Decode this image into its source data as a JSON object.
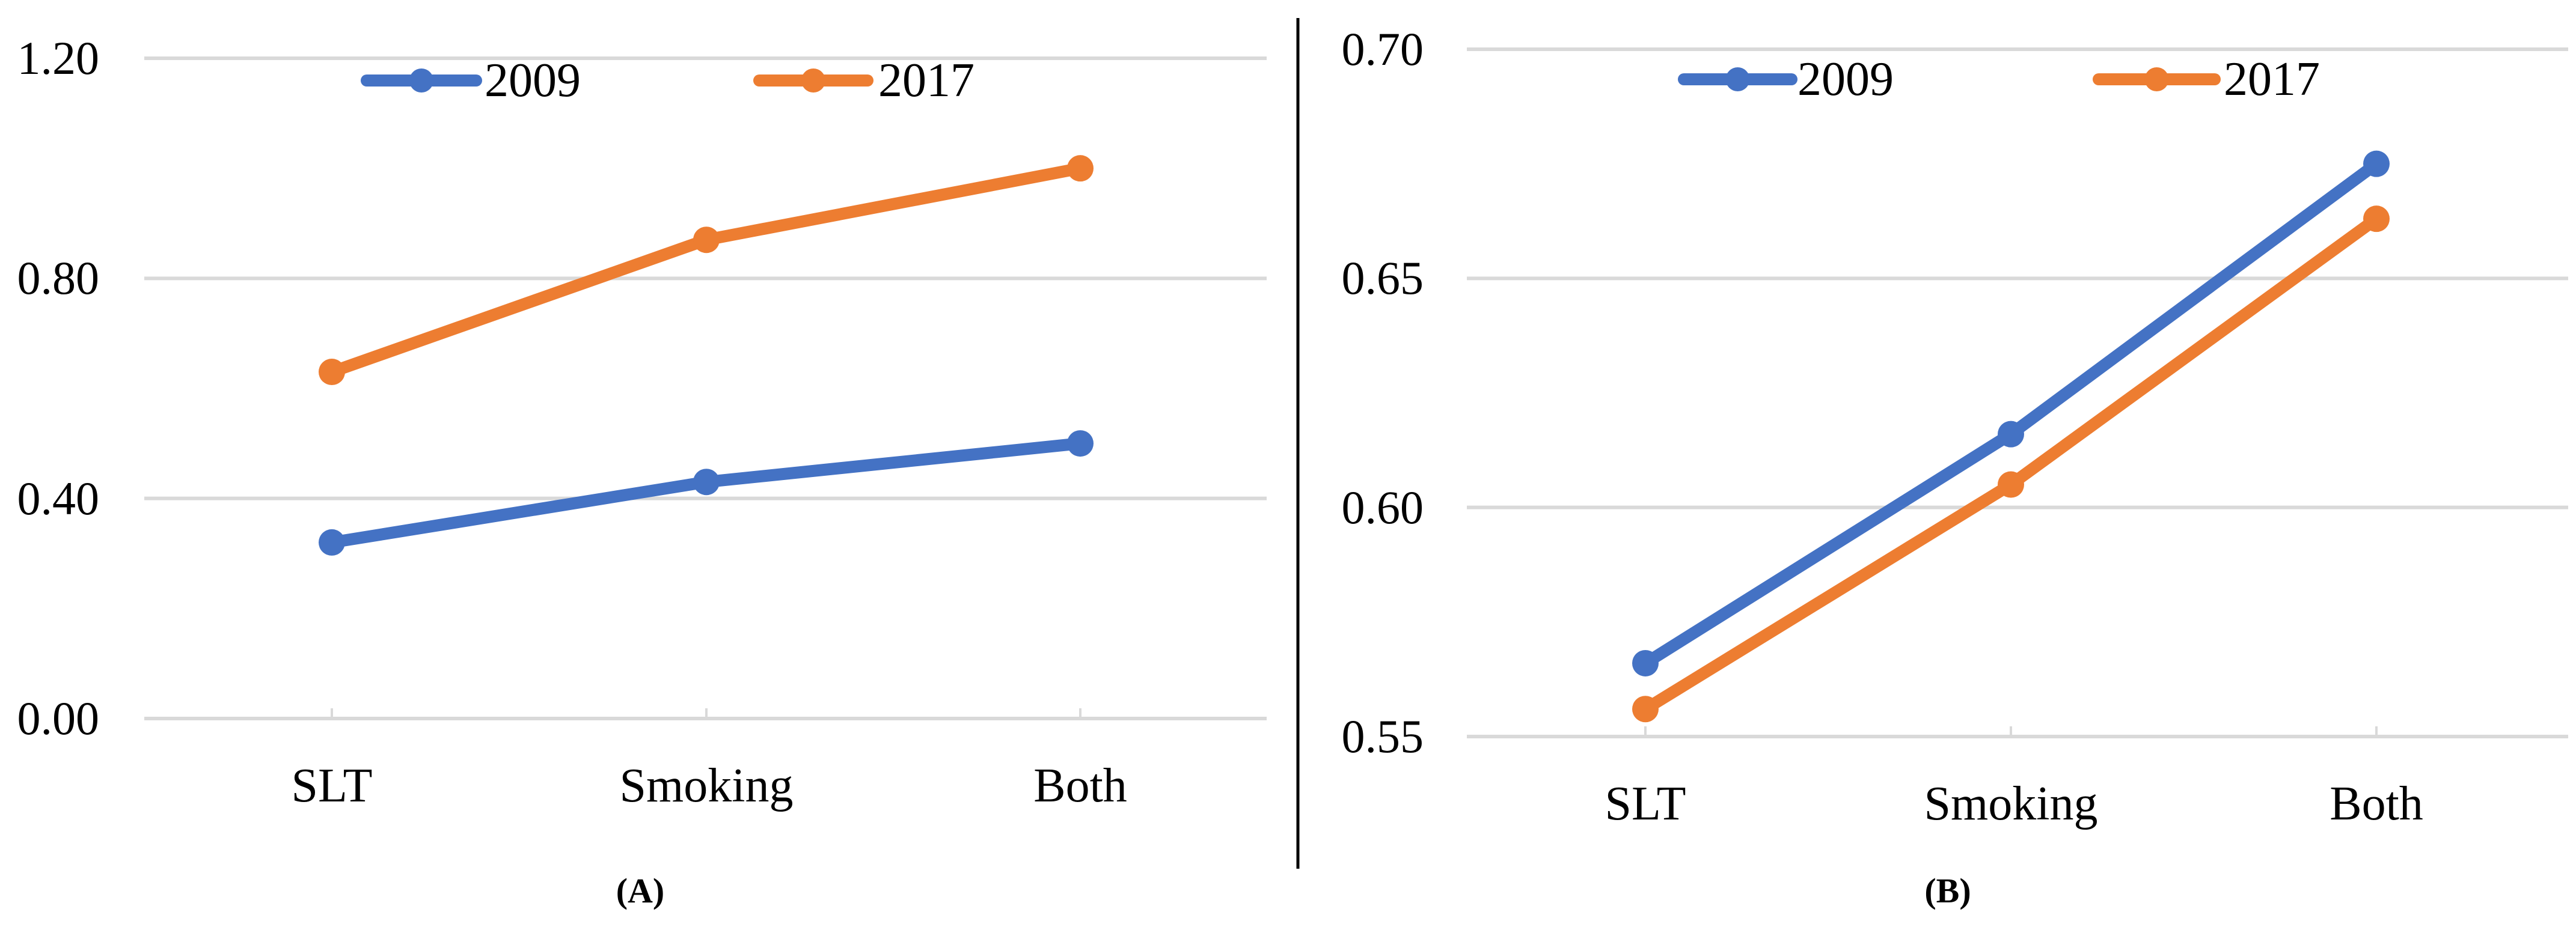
{
  "figure": {
    "background": "#FFFFFF",
    "divider_color": "#000000"
  },
  "colors": {
    "series_2009": "#4472C4",
    "series_2017": "#ED7D31",
    "gridline": "#D9D9D9",
    "text": "#000000"
  },
  "chart_data": [
    {
      "type": "line",
      "panel_label": "(A)",
      "categories": [
        "SLT",
        "Smoking",
        "Both"
      ],
      "series": [
        {
          "name": "2009",
          "color": "#4472C4",
          "values": [
            0.32,
            0.43,
            0.5
          ]
        },
        {
          "name": "2017",
          "color": "#ED7D31",
          "values": [
            0.63,
            0.87,
            1.0
          ]
        }
      ],
      "ylim": [
        0.0,
        1.2
      ],
      "yticks": [
        {
          "label": "0.00",
          "value": 0.0
        },
        {
          "label": "0.40",
          "value": 0.4
        },
        {
          "label": "0.80",
          "value": 0.8
        },
        {
          "label": "1.20",
          "value": 1.2
        }
      ],
      "xlabel": "",
      "ylabel": "",
      "legend_position": "top",
      "grid": true
    },
    {
      "type": "line",
      "panel_label": "(B)",
      "categories": [
        "SLT",
        "Smoking",
        "Both"
      ],
      "series": [
        {
          "name": "2009",
          "color": "#4472C4",
          "values": [
            0.566,
            0.616,
            0.675
          ]
        },
        {
          "name": "2017",
          "color": "#ED7D31",
          "values": [
            0.556,
            0.605,
            0.663
          ]
        }
      ],
      "ylim": [
        0.55,
        0.7
      ],
      "yticks": [
        {
          "label": "0.55",
          "value": 0.55
        },
        {
          "label": "0.60",
          "value": 0.6
        },
        {
          "label": "0.65",
          "value": 0.65
        },
        {
          "label": "0.70",
          "value": 0.7
        }
      ],
      "xlabel": "",
      "ylabel": "",
      "legend_position": "top",
      "grid": true
    }
  ]
}
